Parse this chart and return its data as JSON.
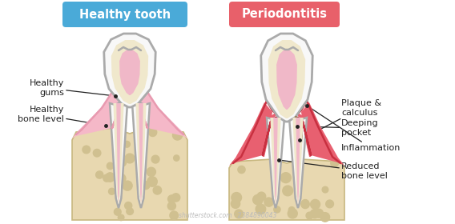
{
  "title_healthy": "Healthy tooth",
  "title_perio": "Periodontitis",
  "label_healthy_gums": "Healthy\ngums",
  "label_healthy_bone": "Healthy\nbone level",
  "label_plaque": "Plaque &\ncalculus",
  "label_pocket": "Deeping\npocket",
  "label_inflammation": "Inflammation",
  "label_bone": "Reduced\nbone level",
  "bg_color": "#ffffff",
  "healthy_title_bg": "#4aaad8",
  "perio_title_bg": "#e8606a",
  "title_text_color": "#ffffff",
  "enamel_color": "#f8f8f8",
  "enamel_stroke": "#aaaaaa",
  "dentin_color": "#f0e8cc",
  "pulp_color": "#f0b8c8",
  "root_outer_color": "#f8f8f8",
  "root_dentin_color": "#f0e8cc",
  "root_pulp_color": "#f0b8c8",
  "gum_healthy_color": "#f5b8c8",
  "gum_healthy_stroke": "#e89ab0",
  "gum_perio_color": "#e86070",
  "gum_perio_stroke": "#c83040",
  "bone_color": "#e8d8b0",
  "bone_stroke": "#c8b880",
  "bone_dots_color": "#d0c090",
  "plaque_color": "#9a8060",
  "annotation_color": "#222222",
  "watermark": "shutterstock.com · 2384890043"
}
